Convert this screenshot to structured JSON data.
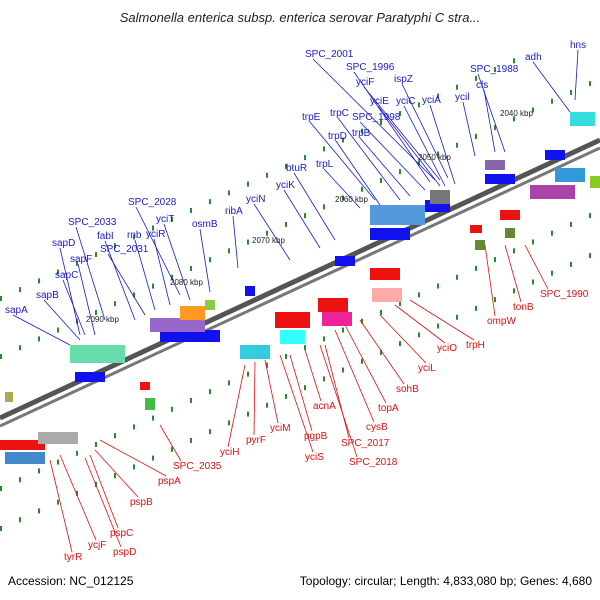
{
  "title": "Salmonella enterica subsp. enterica serovar Paratyphi C stra...",
  "footer": {
    "accession": "Accession: NC_012125",
    "summary": "Topology: circular; Length: 4,833,080 bp; Genes: 4,680"
  },
  "colors": {
    "forward_label": "#1a1acc",
    "reverse_label": "#dd1111",
    "forward_arrow": "#1111ee",
    "reverse_arrow": "#ee1111",
    "kbp_tick": "#1a7a1a"
  },
  "kbp_marks": [
    "2040 kbp",
    "2050 kbp",
    "2060 kbp",
    "2070 kbp",
    "2080 kbp",
    "2090 kbp"
  ],
  "forward_genes": [
    "hns",
    "adh",
    "SPC_1988",
    "cls",
    "ycil",
    "SPC_2001",
    "SPC_1996",
    "yciF",
    "ispZ",
    "yciE",
    "yciC",
    "yciA",
    "SPC_1998",
    "trpC",
    "trpE",
    "trpB",
    "trpD",
    "trpL",
    "btuR",
    "yciK",
    "yciN",
    "ribA",
    "SPC_2028",
    "yciT",
    "osmB",
    "SPC_2033",
    "fabI",
    "rnb",
    "yciR",
    "SPC_2031",
    "sapD",
    "sapF",
    "sapC",
    "sapB",
    "sapA"
  ],
  "reverse_genes": [
    "SPC_1990",
    "tonB",
    "ompW",
    "trpH",
    "yciO",
    "yciL",
    "sohB",
    "topA",
    "cysB",
    "acnA",
    "SPC_2017",
    "SPC_2018",
    "pgpB",
    "yciS",
    "yciM",
    "pyrF",
    "yciH",
    "SPC_2035",
    "pspA",
    "pspB",
    "pspC",
    "pspD",
    "ycjF",
    "tyrR"
  ]
}
